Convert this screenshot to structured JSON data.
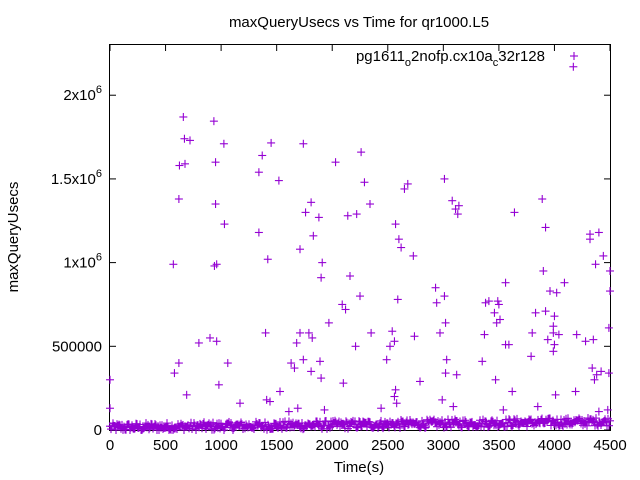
{
  "chart_data": {
    "type": "scatter",
    "title": "maxQueryUsecs vs Time for qr1000.L5",
    "xlabel": "Time(s)",
    "ylabel": "maxQueryUsecs",
    "xlim": [
      0,
      4500
    ],
    "ylim": [
      0,
      2300000
    ],
    "grid": false,
    "legend_placement": "top-right",
    "x_ticks": [
      0,
      500,
      1000,
      1500,
      2000,
      2500,
      3000,
      3500,
      4000,
      4500
    ],
    "y_ticks": [
      {
        "value": 0,
        "base": "0",
        "exp": ""
      },
      {
        "value": 500000,
        "base": "500000",
        "exp": ""
      },
      {
        "value": 1000000,
        "base": "1x10",
        "exp": "6"
      },
      {
        "value": 1500000,
        "base": "1.5x10",
        "exp": "6"
      },
      {
        "value": 2000000,
        "base": "2x10",
        "exp": "6"
      }
    ],
    "series": [
      {
        "name_parts": {
          "a": "pg1611",
          "sub1": "o",
          "b": "2nofp.cx10a",
          "sub2": "c",
          "c": "32r128"
        },
        "color": "#9400d3",
        "marker": "plus",
        "points": [
          [
            660,
            1870000
          ],
          [
            935,
            1845000
          ],
          [
            720,
            1730000
          ],
          [
            670,
            1740000
          ],
          [
            1025,
            1710000
          ],
          [
            1450,
            1715000
          ],
          [
            1740,
            1710000
          ],
          [
            1370,
            1640000
          ],
          [
            950,
            1600000
          ],
          [
            625,
            1580000
          ],
          [
            675,
            1590000
          ],
          [
            1340,
            1540000
          ],
          [
            1520,
            1490000
          ],
          [
            2260,
            1660000
          ],
          [
            2030,
            1600000
          ],
          [
            2290,
            1480000
          ],
          [
            2680,
            1470000
          ],
          [
            2650,
            1440000
          ],
          [
            4170,
            2170000
          ],
          [
            3010,
            1500000
          ],
          [
            3890,
            1380000
          ],
          [
            2340,
            1350000
          ],
          [
            3080,
            1370000
          ],
          [
            3140,
            1340000
          ],
          [
            3110,
            1320000
          ],
          [
            1810,
            1360000
          ],
          [
            2220,
            1290000
          ],
          [
            2140,
            1280000
          ],
          [
            1880,
            1270000
          ],
          [
            1760,
            1300000
          ],
          [
            620,
            1380000
          ],
          [
            950,
            1350000
          ],
          [
            2570,
            1230000
          ],
          [
            3130,
            1290000
          ],
          [
            3640,
            1300000
          ],
          [
            3920,
            1210000
          ],
          [
            1030,
            1230000
          ],
          [
            1340,
            1180000
          ],
          [
            1830,
            1160000
          ],
          [
            2600,
            1140000
          ],
          [
            4320,
            1170000
          ],
          [
            4400,
            1180000
          ],
          [
            4320,
            1140000
          ],
          [
            1710,
            1080000
          ],
          [
            2620,
            1090000
          ],
          [
            2730,
            1040000
          ],
          [
            4440,
            1040000
          ],
          [
            570,
            990000
          ],
          [
            940,
            980000
          ],
          [
            960,
            990000
          ],
          [
            1420,
            1020000
          ],
          [
            1910,
            1000000
          ],
          [
            3900,
            950000
          ],
          [
            4370,
            990000
          ],
          [
            4500,
            950000
          ],
          [
            1900,
            910000
          ],
          [
            2160,
            920000
          ],
          [
            2590,
            780000
          ],
          [
            2930,
            850000
          ],
          [
            3010,
            800000
          ],
          [
            3560,
            880000
          ],
          [
            3490,
            770000
          ],
          [
            3830,
            700000
          ],
          [
            3960,
            830000
          ],
          [
            4020,
            820000
          ],
          [
            4090,
            880000
          ],
          [
            4500,
            830000
          ],
          [
            2090,
            750000
          ],
          [
            2120,
            720000
          ],
          [
            2250,
            800000
          ],
          [
            2940,
            760000
          ],
          [
            3410,
            770000
          ],
          [
            3500,
            750000
          ],
          [
            3460,
            700000
          ],
          [
            3480,
            640000
          ],
          [
            3510,
            660000
          ],
          [
            3920,
            710000
          ],
          [
            4000,
            680000
          ],
          [
            3990,
            620000
          ],
          [
            3380,
            760000
          ],
          [
            3020,
            640000
          ],
          [
            3990,
            580000
          ],
          [
            4040,
            570000
          ],
          [
            3800,
            580000
          ],
          [
            4200,
            570000
          ],
          [
            4280,
            530000
          ],
          [
            4490,
            610000
          ],
          [
            1400,
            580000
          ],
          [
            1710,
            580000
          ],
          [
            1790,
            580000
          ],
          [
            1970,
            640000
          ],
          [
            2350,
            580000
          ],
          [
            2540,
            590000
          ],
          [
            2560,
            530000
          ],
          [
            2740,
            560000
          ],
          [
            2970,
            580000
          ],
          [
            3370,
            570000
          ],
          [
            3590,
            510000
          ],
          [
            3560,
            510000
          ],
          [
            3940,
            540000
          ],
          [
            4000,
            510000
          ],
          [
            900,
            550000
          ],
          [
            960,
            530000
          ],
          [
            800,
            520000
          ],
          [
            1680,
            520000
          ],
          [
            1820,
            550000
          ],
          [
            2210,
            500000
          ],
          [
            2520,
            500000
          ],
          [
            3790,
            440000
          ],
          [
            3990,
            470000
          ],
          [
            4350,
            540000
          ],
          [
            620,
            400000
          ],
          [
            580,
            340000
          ],
          [
            1060,
            400000
          ],
          [
            1630,
            400000
          ],
          [
            1660,
            370000
          ],
          [
            1740,
            420000
          ],
          [
            1890,
            410000
          ],
          [
            1810,
            350000
          ],
          [
            2490,
            420000
          ],
          [
            3030,
            420000
          ],
          [
            3350,
            410000
          ],
          [
            4340,
            370000
          ],
          [
            4420,
            350000
          ],
          [
            4490,
            340000
          ],
          [
            4380,
            330000
          ],
          [
            4360,
            300000
          ],
          [
            3020,
            340000
          ],
          [
            3120,
            330000
          ],
          [
            690,
            210000
          ],
          [
            980,
            270000
          ],
          [
            1410,
            180000
          ],
          [
            1530,
            230000
          ],
          [
            2100,
            280000
          ],
          [
            1900,
            310000
          ],
          [
            2570,
            240000
          ],
          [
            2790,
            290000
          ],
          [
            3470,
            300000
          ],
          [
            3620,
            230000
          ],
          [
            4010,
            210000
          ],
          [
            4190,
            230000
          ],
          [
            2580,
            160000
          ],
          [
            3850,
            140000
          ],
          [
            0,
            300000
          ],
          [
            0,
            130000
          ],
          [
            1170,
            160000
          ],
          [
            1440,
            170000
          ],
          [
            1610,
            110000
          ],
          [
            1690,
            130000
          ],
          [
            1930,
            120000
          ],
          [
            2440,
            130000
          ],
          [
            2560,
            200000
          ],
          [
            2990,
            180000
          ],
          [
            3090,
            140000
          ],
          [
            3540,
            120000
          ],
          [
            4400,
            110000
          ],
          [
            4480,
            120000
          ]
        ]
      }
    ]
  }
}
